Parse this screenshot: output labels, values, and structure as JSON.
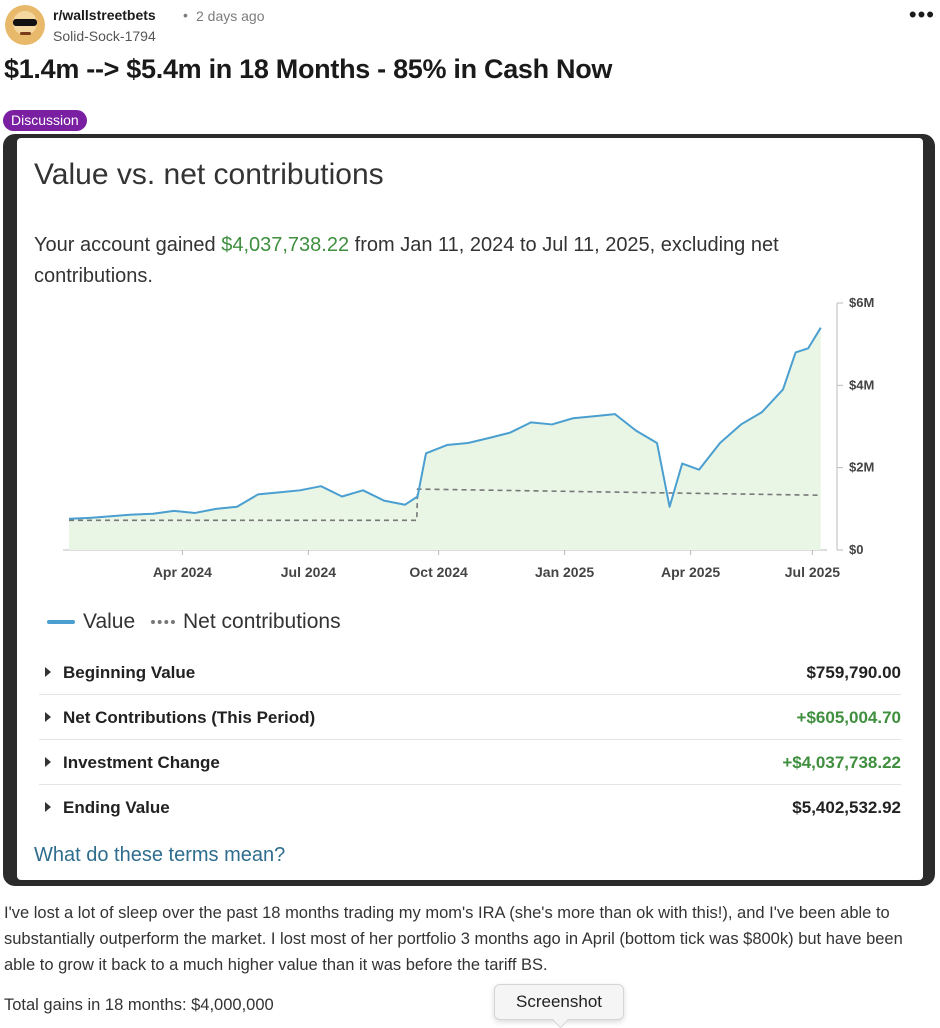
{
  "post": {
    "subreddit": "r/wallstreetbets",
    "separator": "•",
    "time": "2 days ago",
    "author": "Solid-Sock-1794",
    "more_icon": "ellipsis-icon",
    "title": "$1.4m --> $5.4m in 18 Months - 85% in Cash Now",
    "flair": "Discussion",
    "flair_color": "#7b1fa2"
  },
  "screenshot": {
    "title": "Value vs. net contributions",
    "gain_prefix": "Your account gained",
    "gain_amount": "$4,037,738.22",
    "gain_suffix": "from Jan 11, 2024 to Jul 11, 2025, excluding net contributions.",
    "legend_value": "Value",
    "legend_net": "Net contributions",
    "rows": [
      {
        "label": "Beginning Value",
        "value": "$759,790.00"
      },
      {
        "label": "Net Contributions (This Period)",
        "value": "+$605,004.70"
      },
      {
        "label": "Investment Change",
        "value": "+$4,037,738.22"
      },
      {
        "label": "Ending Value",
        "value": "$5,402,532.92"
      }
    ],
    "terms_link": "What do these terms mean?"
  },
  "chart_data": {
    "type": "area",
    "x_ticks": [
      "Apr 2024",
      "Jul 2024",
      "Oct 2024",
      "Jan 2025",
      "Apr 2025",
      "Jul 2025"
    ],
    "y_ticks": [
      "$0",
      "$2M",
      "$4M",
      "$6M"
    ],
    "ylim": [
      0,
      6
    ],
    "y_unit": "millions USD",
    "xlim": [
      0,
      18
    ],
    "grid": false,
    "legend_position": "bottom-left",
    "colors": {
      "value": "#4a9fd0",
      "fill": "#e9f6e6",
      "net": "#777777"
    },
    "series": [
      {
        "name": "Value",
        "x": [
          0,
          0.5,
          1,
          1.5,
          2,
          2.5,
          3,
          3.5,
          4,
          4.5,
          5,
          5.5,
          6,
          6.5,
          7,
          7.5,
          8,
          8.3,
          8.5,
          9,
          9.5,
          10,
          10.5,
          11,
          11.5,
          12,
          12.5,
          13,
          13.5,
          14,
          14.3,
          14.6,
          15,
          15.5,
          16,
          16.5,
          17,
          17.3,
          17.6,
          17.9
        ],
        "values": [
          0.76,
          0.78,
          0.82,
          0.86,
          0.88,
          0.95,
          0.9,
          1.0,
          1.05,
          1.35,
          1.4,
          1.45,
          1.55,
          1.3,
          1.45,
          1.2,
          1.1,
          1.3,
          2.35,
          2.55,
          2.6,
          2.72,
          2.85,
          3.1,
          3.05,
          3.2,
          3.25,
          3.3,
          2.9,
          2.6,
          1.05,
          2.1,
          1.95,
          2.6,
          3.05,
          3.35,
          3.9,
          4.8,
          4.9,
          5.4
        ]
      },
      {
        "name": "Net contributions",
        "x": [
          0,
          8.28,
          8.3,
          17.9
        ],
        "values": [
          0.72,
          0.72,
          1.48,
          1.33
        ]
      }
    ]
  },
  "footer": {
    "body": "I've lost a lot of sleep over the past 18 months trading my mom's IRA (she's more than ok with this!), and I've been able to substantially outperform the market. I lost most of her portfolio 3 months ago in April (bottom tick was $800k) but have been able to grow it back to a much higher value than it was before the tariff BS.",
    "gains": "Total gains in 18 months: $4,000,000",
    "tooltip": "Screenshot"
  }
}
